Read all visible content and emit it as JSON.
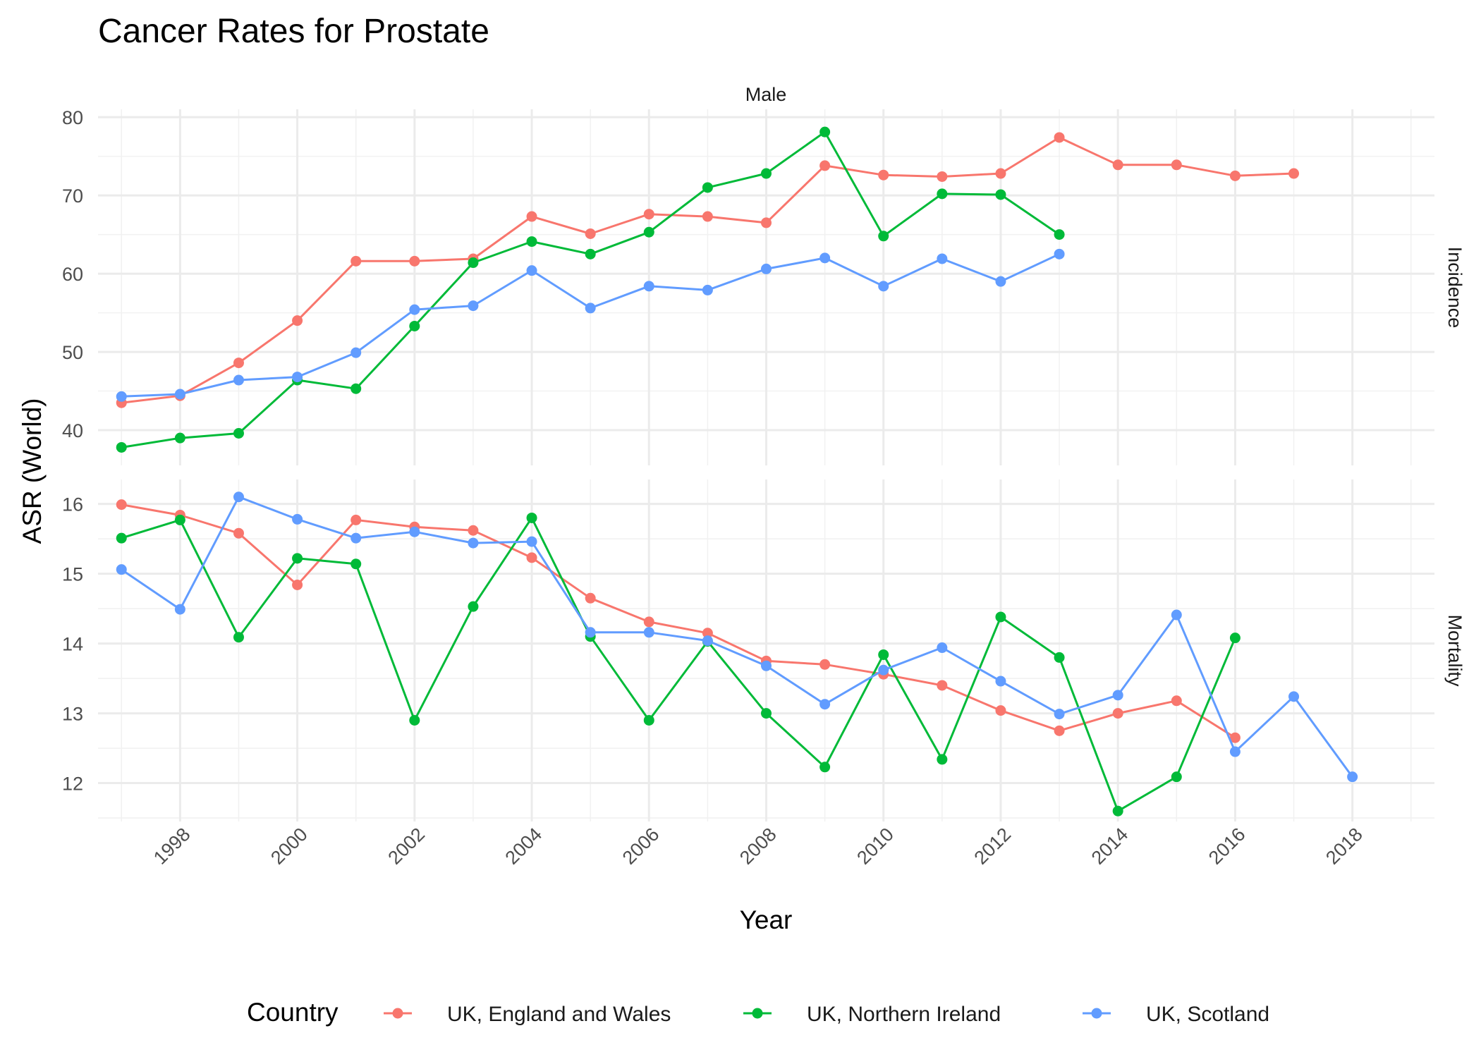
{
  "chart_data": {
    "type": "line",
    "title": "Cancer Rates for Prostate",
    "xlabel": "Year",
    "ylabel": "ASR (World)",
    "column_strip": "Male",
    "x_ticks": [
      1998,
      2000,
      2002,
      2004,
      2006,
      2008,
      2010,
      2012,
      2014,
      2016,
      2018
    ],
    "xlim": [
      1996.6,
      2019.4
    ],
    "grid": true,
    "legend": {
      "title": "Country",
      "position": "bottom",
      "entries": [
        "UK, England and Wales",
        "UK, Northern Ireland",
        "UK, Scotland"
      ]
    },
    "colors": {
      "UK, England and Wales": "#F8766D",
      "UK, Northern Ireland": "#00BA38",
      "UK, Scotland": "#619CFF"
    },
    "panels": [
      {
        "strip": "Incidence",
        "ylim": [
          35.5,
          81
        ],
        "y_ticks": [
          40,
          50,
          60,
          70,
          80
        ],
        "series": [
          {
            "name": "UK, England and Wales",
            "x": [
              1997,
              1998,
              1999,
              2000,
              2001,
              2002,
              2003,
              2004,
              2005,
              2006,
              2007,
              2008,
              2009,
              2010,
              2011,
              2012,
              2013,
              2014,
              2015,
              2016,
              2017
            ],
            "y": [
              43.5,
              44.4,
              48.6,
              54.0,
              61.6,
              61.6,
              61.9,
              67.3,
              65.1,
              67.6,
              67.3,
              66.5,
              73.8,
              72.6,
              72.4,
              72.8,
              77.4,
              73.9,
              73.9,
              72.5,
              72.8
            ]
          },
          {
            "name": "UK, Northern Ireland",
            "x": [
              1997,
              1998,
              1999,
              2000,
              2001,
              2002,
              2003,
              2004,
              2005,
              2006,
              2007,
              2008,
              2009,
              2010,
              2011,
              2012,
              2013
            ],
            "y": [
              37.8,
              39.0,
              39.6,
              46.4,
              45.3,
              53.3,
              61.4,
              64.1,
              62.5,
              65.3,
              71.0,
              72.8,
              78.1,
              64.8,
              70.2,
              70.1,
              65.0
            ]
          },
          {
            "name": "UK, Scotland",
            "x": [
              1997,
              1998,
              1999,
              2000,
              2001,
              2002,
              2003,
              2004,
              2005,
              2006,
              2007,
              2008,
              2009,
              2010,
              2011,
              2012,
              2013
            ],
            "y": [
              44.3,
              44.6,
              46.4,
              46.8,
              49.9,
              55.4,
              55.9,
              60.4,
              55.6,
              58.4,
              57.9,
              60.6,
              62.0,
              58.4,
              61.9,
              59.0,
              62.5
            ]
          }
        ]
      },
      {
        "strip": "Mortality",
        "ylim": [
          11.45,
          16.35
        ],
        "y_ticks": [
          12,
          13,
          14,
          15,
          16
        ],
        "series": [
          {
            "name": "UK, England and Wales",
            "x": [
              1997,
              1998,
              1999,
              2000,
              2001,
              2002,
              2003,
              2004,
              2005,
              2006,
              2007,
              2008,
              2009,
              2010,
              2011,
              2012,
              2013,
              2014,
              2015,
              2016
            ],
            "y": [
              15.99,
              15.84,
              15.58,
              14.84,
              15.77,
              15.67,
              15.62,
              15.23,
              14.65,
              14.31,
              14.15,
              13.75,
              13.7,
              13.56,
              13.4,
              13.04,
              12.75,
              13.0,
              13.18,
              12.65
            ]
          },
          {
            "name": "UK, Northern Ireland",
            "x": [
              1997,
              1998,
              1999,
              2000,
              2001,
              2002,
              2003,
              2004,
              2005,
              2006,
              2007,
              2008,
              2009,
              2010,
              2011,
              2012,
              2013,
              2014,
              2015,
              2016
            ],
            "y": [
              15.51,
              15.77,
              14.09,
              15.22,
              15.14,
              12.9,
              14.53,
              15.8,
              14.1,
              12.9,
              14.03,
              13.0,
              12.23,
              13.84,
              12.34,
              14.38,
              13.8,
              11.6,
              12.09,
              14.08
            ]
          },
          {
            "name": "UK, Scotland",
            "x": [
              1997,
              1998,
              1999,
              2000,
              2001,
              2002,
              2003,
              2004,
              2005,
              2006,
              2007,
              2008,
              2009,
              2010,
              2011,
              2012,
              2013,
              2014,
              2015,
              2016,
              2017,
              2018
            ],
            "y": [
              15.06,
              14.49,
              16.1,
              15.78,
              15.51,
              15.6,
              15.44,
              15.46,
              14.16,
              14.16,
              14.04,
              13.68,
              13.13,
              13.62,
              13.94,
              13.46,
              12.99,
              13.26,
              14.41,
              12.45,
              13.24,
              12.09
            ]
          }
        ]
      }
    ]
  }
}
